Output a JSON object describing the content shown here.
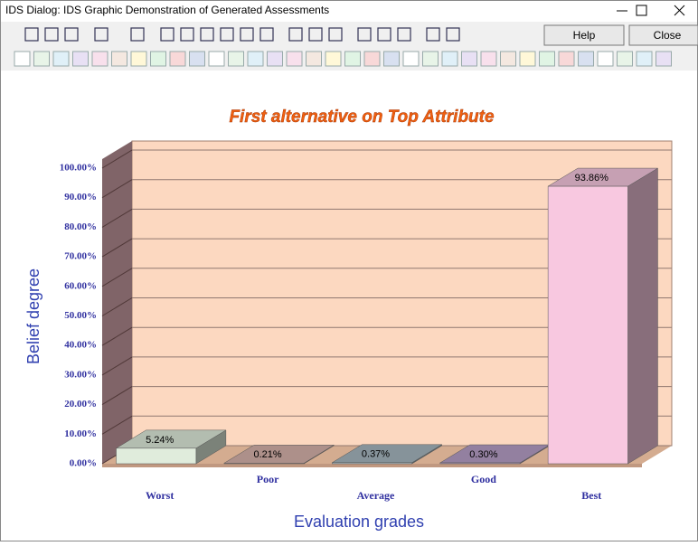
{
  "window": {
    "title": "IDS Dialog: IDS Graphic Demonstration of Generated Assessments",
    "buttons": [
      "Help",
      "Close"
    ]
  },
  "chart_data": {
    "type": "bar3d",
    "title": "First alternative on Top Attribute",
    "x_label": "Evaluation grades",
    "y_label": "Belief degree",
    "categories": [
      "Worst",
      "Poor",
      "Average",
      "Good",
      "Best"
    ],
    "values": [
      5.24,
      0.21,
      0.37,
      0.3,
      93.86
    ],
    "value_labels": [
      "5.24%",
      "0.21%",
      "0.37%",
      "0.30%",
      "93.86%"
    ],
    "colors": [
      "#e0ecdc",
      "#d8b4ac",
      "#a8b8c0",
      "#b8a0c8",
      "#f8c8e0"
    ],
    "ylim": [
      0,
      100
    ],
    "yticks": [
      {
        "value": 0,
        "label": "0.00%"
      },
      {
        "value": 10,
        "label": "10.00%"
      },
      {
        "value": 20,
        "label": "20.00%"
      },
      {
        "value": 30,
        "label": "30.00%"
      },
      {
        "value": 40,
        "label": "40.00%"
      },
      {
        "value": 50,
        "label": "50.00%"
      },
      {
        "value": 60,
        "label": "60.00%"
      },
      {
        "value": 70,
        "label": "70.00%"
      },
      {
        "value": 80,
        "label": "80.00%"
      },
      {
        "value": 90,
        "label": "90.00%"
      },
      {
        "value": 100,
        "label": "100.00%"
      }
    ],
    "grid": true
  }
}
